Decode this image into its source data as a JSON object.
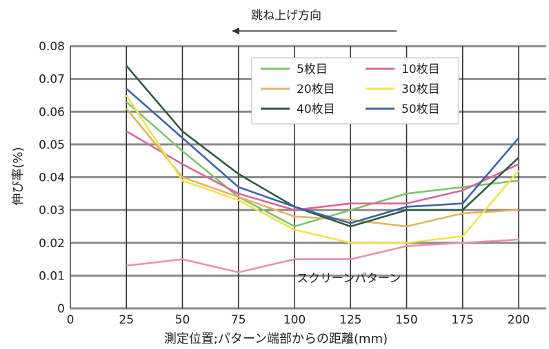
{
  "chart_data": {
    "type": "line",
    "title": "",
    "annotation_top": "跳ね上げ方向",
    "annotation_inside": "スクリーンパターン",
    "xlabel": "測定位置;パターン端部からの距離(mm)",
    "ylabel": "伸び率(%)",
    "xlim": [
      0,
      200
    ],
    "ylim": [
      0,
      0.08
    ],
    "xticks": [
      "0",
      "25",
      "50",
      "75",
      "100",
      "125",
      "150",
      "175",
      "200"
    ],
    "yticks": [
      "0",
      "0.01",
      "0.02",
      "0.03",
      "0.04",
      "0.05",
      "0.06",
      "0.07",
      "0.08"
    ],
    "x": [
      25,
      50,
      75,
      100,
      125,
      150,
      175,
      200
    ],
    "grid": true,
    "legend_position": "top-right",
    "series": [
      {
        "name": "5枚目",
        "color": "#7cc46a",
        "values": [
          0.063,
          0.048,
          0.034,
          0.025,
          0.03,
          0.035,
          0.037,
          0.039
        ]
      },
      {
        "name": "10枚目",
        "color": "#d9669a",
        "values": [
          0.054,
          0.044,
          0.035,
          0.03,
          0.032,
          0.032,
          0.036,
          0.044
        ]
      },
      {
        "name": "20枚目",
        "color": "#e2b460",
        "values": [
          0.061,
          0.04,
          0.034,
          0.028,
          0.027,
          0.025,
          0.029,
          0.03
        ]
      },
      {
        "name": "30枚目",
        "color": "#f3e24c",
        "values": [
          0.065,
          0.039,
          0.033,
          0.024,
          0.02,
          0.02,
          0.022,
          0.042
        ]
      },
      {
        "name": "40枚目",
        "color": "#2f5a3e",
        "values": [
          0.074,
          0.054,
          0.041,
          0.031,
          0.025,
          0.03,
          0.03,
          0.046
        ]
      },
      {
        "name": "50枚目",
        "color": "#3a64a8",
        "values": [
          0.067,
          0.052,
          0.037,
          0.031,
          0.026,
          0.031,
          0.032,
          0.052
        ]
      },
      {
        "name": "",
        "color": "#e98fb2",
        "values": [
          0.013,
          0.015,
          0.011,
          0.015,
          0.015,
          0.019,
          0.02,
          0.021
        ]
      }
    ]
  }
}
